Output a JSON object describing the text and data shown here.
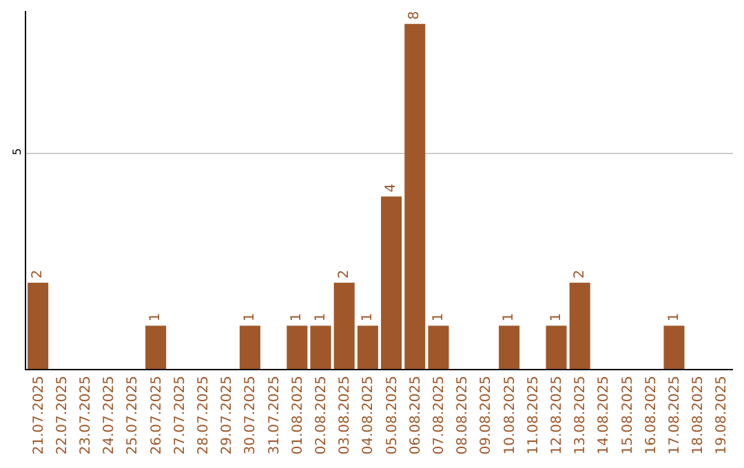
{
  "chart_data": {
    "type": "bar",
    "categories": [
      "21.07.2025",
      "22.07.2025",
      "23.07.2025",
      "24.07.2025",
      "25.07.2025",
      "26.07.2025",
      "27.07.2025",
      "28.07.2025",
      "29.07.2025",
      "30.07.2025",
      "31.07.2025",
      "01.08.2025",
      "02.08.2025",
      "03.08.2025",
      "04.08.2025",
      "05.08.2025",
      "06.08.2025",
      "07.08.2025",
      "08.08.2025",
      "09.08.2025",
      "10.08.2025",
      "11.08.2025",
      "12.08.2025",
      "13.08.2025",
      "14.08.2025",
      "15.08.2025",
      "16.08.2025",
      "17.08.2025",
      "18.08.2025",
      "19.08.2025"
    ],
    "values": [
      2,
      0,
      0,
      0,
      0,
      1,
      0,
      0,
      0,
      1,
      0,
      1,
      1,
      2,
      1,
      4,
      8,
      1,
      0,
      0,
      1,
      0,
      1,
      2,
      0,
      0,
      0,
      1,
      0,
      0
    ],
    "value_labels": [
      "2",
      null,
      null,
      null,
      null,
      "1",
      null,
      null,
      null,
      "1",
      null,
      "1",
      "1",
      "2",
      "1",
      "4",
      "8",
      "1",
      null,
      null,
      "1",
      null,
      "1",
      "2",
      null,
      null,
      null,
      "1",
      null,
      null
    ],
    "color": "#a0582a",
    "ylim": [
      0,
      8.3
    ],
    "yticks": [
      5
    ],
    "grid": "y"
  }
}
